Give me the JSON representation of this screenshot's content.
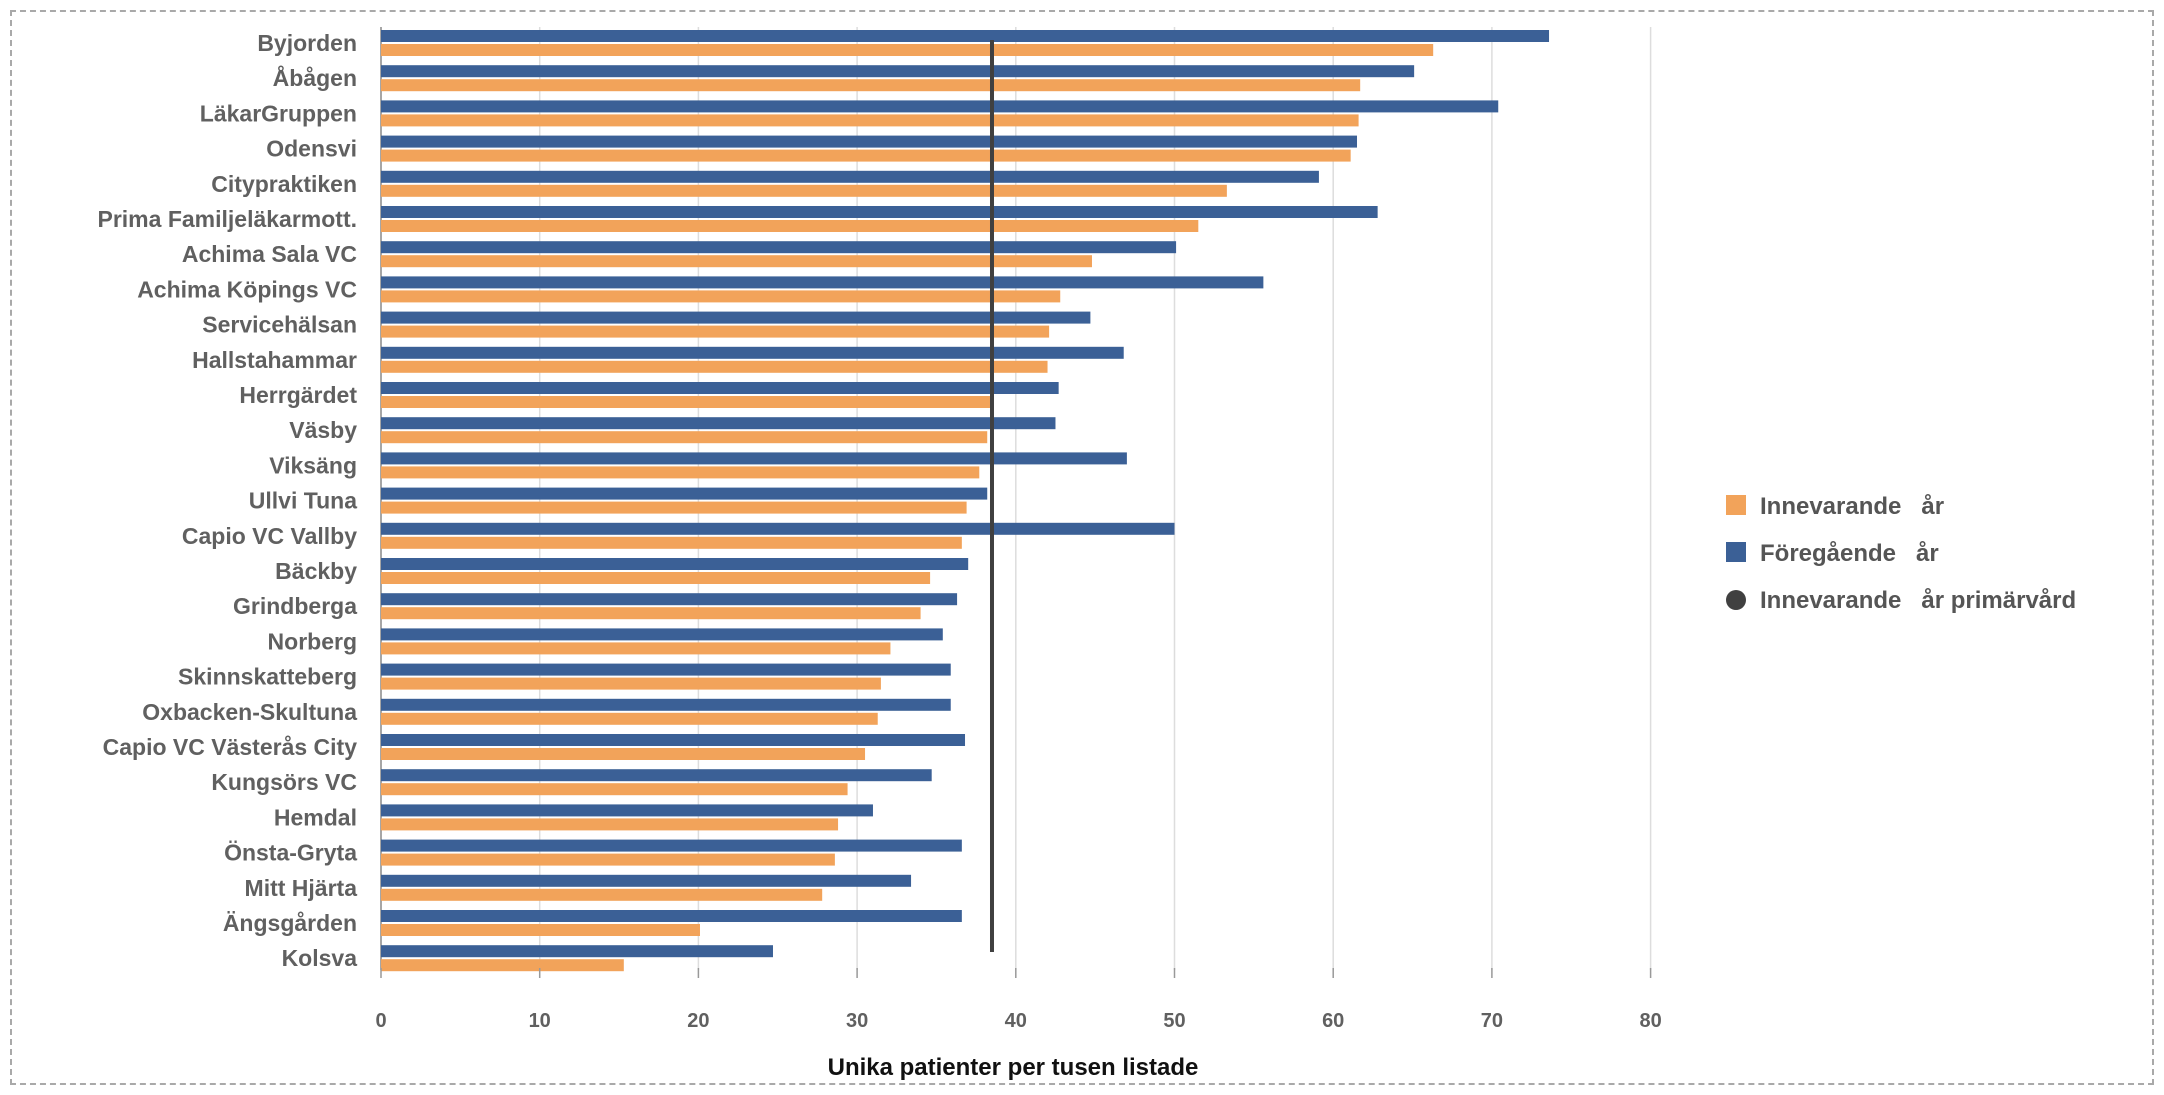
{
  "colors": {
    "current": "#F2A35A",
    "previous": "#3B6096",
    "reference": "#404040",
    "grid": "#dddddd"
  },
  "chart_data": {
    "type": "bar",
    "orientation": "horizontal",
    "xlabel": "Unika patienter per tusen listade",
    "ylabel": "",
    "xlim": [
      0,
      80
    ],
    "xticks": [
      0,
      10,
      20,
      30,
      40,
      50,
      60,
      70,
      80
    ],
    "grid": "vertical",
    "legend_position": "right",
    "categories": [
      "Byjorden",
      "Åbågen",
      "LäkarGruppen",
      "Odensvi",
      "Citypraktiken",
      "Prima Familjeläkarmott.",
      "Achima Sala VC",
      "Achima Köpings VC",
      "Servicehälsan",
      "Hallstahammar",
      "Herrgärdet",
      "Väsby",
      "Viksäng",
      "Ullvi Tuna",
      "Capio VC Vallby",
      "Bäckby",
      "Grindberga",
      "Norberg",
      "Skinnskatteberg",
      "Oxbacken-Skultuna",
      "Capio VC Västerås City",
      "Kungsörs VC",
      "Hemdal",
      "Önsta-Gryta",
      "Mitt Hjärta",
      "Ängsgården",
      "Kolsva"
    ],
    "series": [
      {
        "name": "Innevarande   år",
        "color": "#F2A35A",
        "values": [
          66.3,
          61.7,
          61.6,
          61.1,
          53.3,
          51.5,
          44.8,
          42.8,
          42.1,
          42.0,
          38.5,
          38.2,
          37.7,
          36.9,
          36.6,
          34.6,
          34.0,
          32.1,
          31.5,
          31.3,
          30.5,
          29.4,
          28.8,
          28.6,
          27.8,
          20.1,
          15.3
        ]
      },
      {
        "name": "Föregående   år",
        "color": "#3B6096",
        "values": [
          73.6,
          65.1,
          70.4,
          61.5,
          59.1,
          62.8,
          50.1,
          55.6,
          44.7,
          46.8,
          42.7,
          42.5,
          47.0,
          38.2,
          50.0,
          37.0,
          36.3,
          35.4,
          35.9,
          35.9,
          36.8,
          34.7,
          31.0,
          36.6,
          33.4,
          36.6,
          24.7
        ]
      }
    ],
    "reference_line": {
      "name": "Innevarande   år primärvård",
      "value": 38.5,
      "color": "#404040"
    }
  }
}
